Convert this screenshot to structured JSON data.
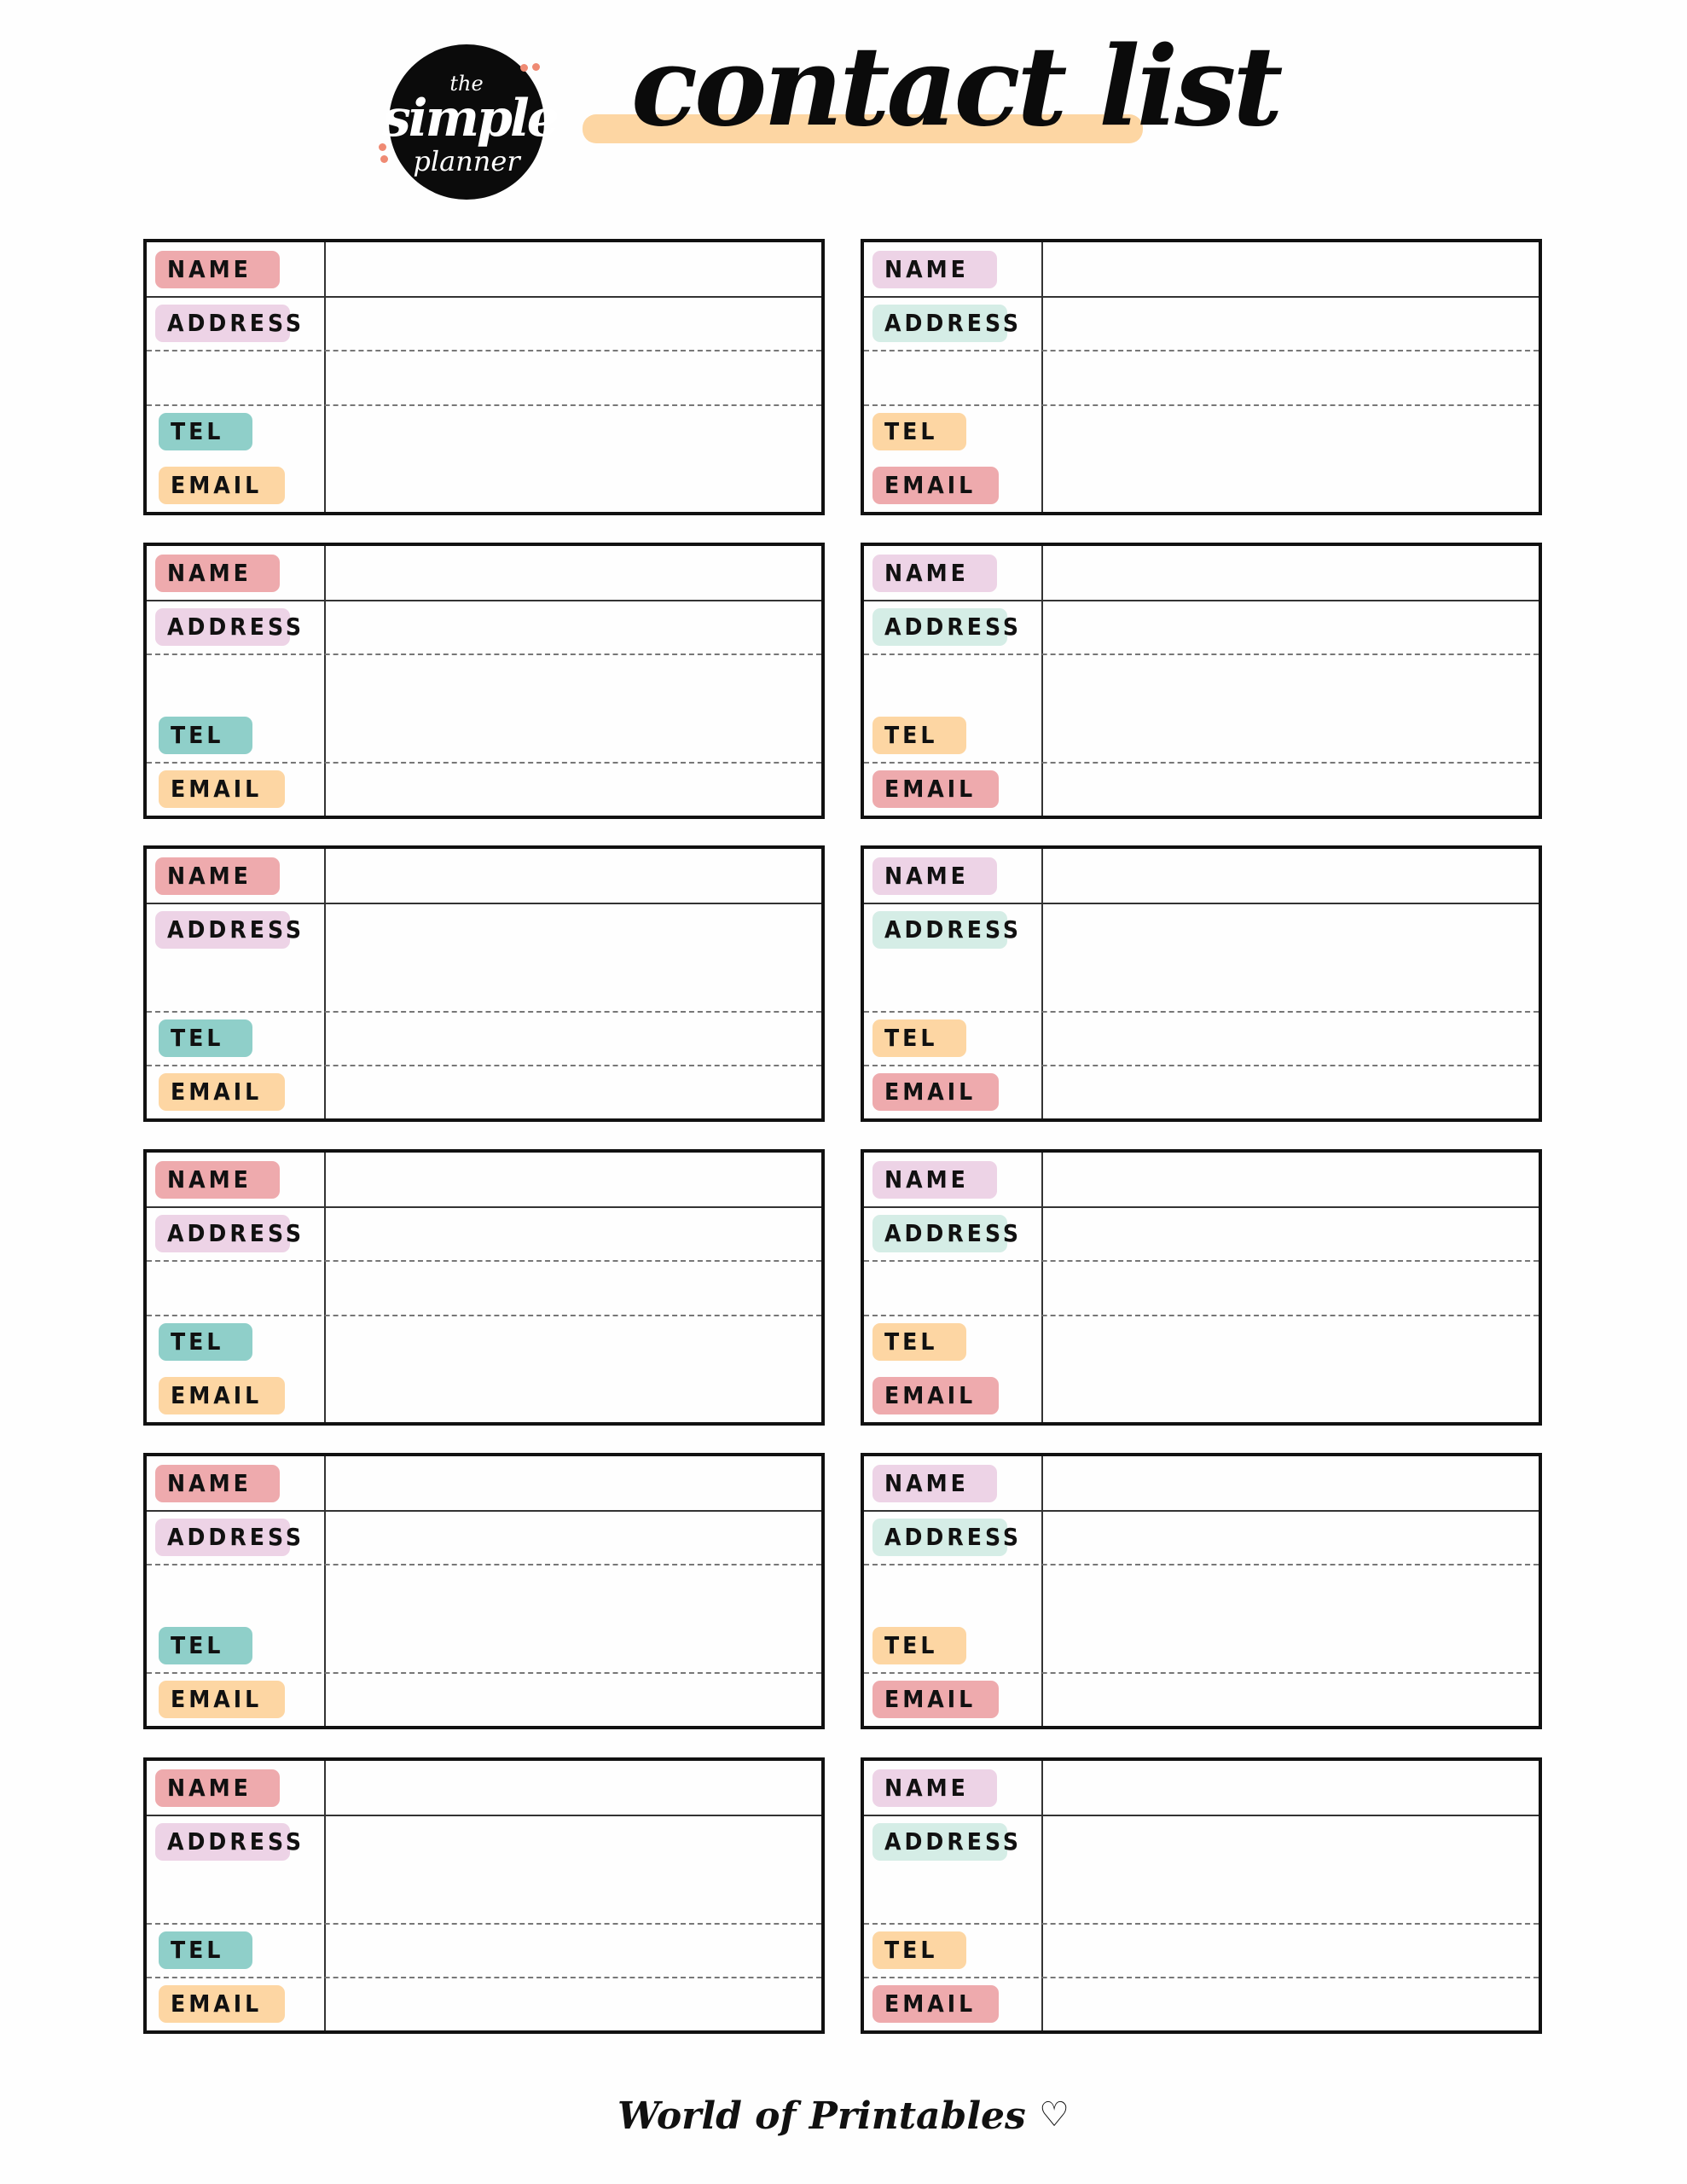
{
  "logo": {
    "line1": "the",
    "line2": "simple",
    "line3": "planner"
  },
  "title": "contact list",
  "footer": {
    "text": "World of Printables",
    "heart": "♡"
  },
  "colors": {
    "pink": "#eeaaad",
    "lilac": "#edd3e6",
    "teal": "#8fcfc9",
    "peach": "#fdd6a3",
    "mint": "#d5ede6",
    "highlight": "#fdd6a3"
  },
  "labels": {
    "name": "NAME",
    "address": "ADDRESS",
    "tel": "TEL",
    "email": "EMAIL"
  },
  "left_card_colors": {
    "name": "#eeaaad",
    "address": "#edd3e6",
    "tel": "#8fcfc9",
    "email": "#fdd6a3"
  },
  "right_card_colors": {
    "name": "#edd3e6",
    "address": "#d5ede6",
    "tel": "#fdd6a3",
    "email": "#eeaaad"
  },
  "card_rows": 6,
  "cards_per_row": 2
}
